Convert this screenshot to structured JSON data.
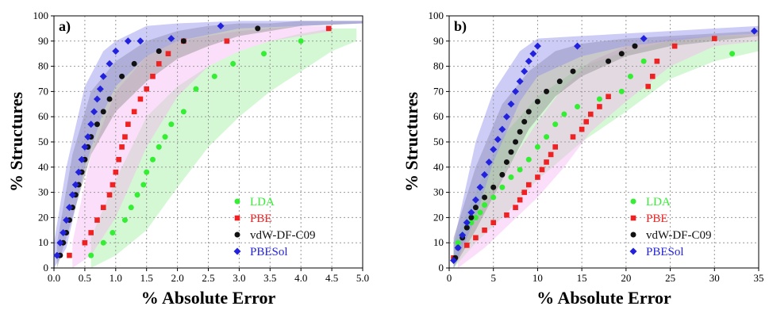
{
  "chart_data": [
    {
      "type": "scatter",
      "panel_label": "a)",
      "xlabel": "% Absolute Error",
      "ylabel": "% Structures",
      "xlim": [
        0,
        5.0
      ],
      "ylim": [
        0,
        100
      ],
      "xticks": [
        "0.0",
        "0.5",
        "1.0",
        "1.5",
        "2.0",
        "2.5",
        "3.0",
        "3.5",
        "4.0",
        "4.5",
        "5.0"
      ],
      "yticks": [
        "0",
        "10",
        "20",
        "30",
        "40",
        "50",
        "60",
        "70",
        "80",
        "90",
        "100"
      ],
      "grid": true,
      "legend_position": "bottom-right",
      "series": [
        {
          "name": "LDA",
          "color": "#33ee33",
          "marker": "circle",
          "x": [
            0.6,
            0.8,
            0.95,
            1.15,
            1.25,
            1.35,
            1.45,
            1.5,
            1.6,
            1.7,
            1.8,
            1.9,
            2.1,
            2.3,
            2.6,
            2.9,
            3.4,
            4.0
          ],
          "y": [
            5,
            10,
            14,
            19,
            24,
            29,
            33,
            38,
            43,
            48,
            52,
            57,
            62,
            71,
            76,
            81,
            85,
            90
          ],
          "band_x": [
            0.6,
            1.0,
            1.5,
            2.0,
            2.5,
            3.0,
            3.5,
            4.0,
            4.5,
            4.9
          ],
          "band_low": [
            0,
            5,
            15,
            32,
            48,
            60,
            70,
            78,
            86,
            90
          ],
          "band_high": [
            12,
            35,
            60,
            72,
            80,
            86,
            90,
            93,
            95,
            95
          ]
        },
        {
          "name": "PBE",
          "color": "#ee2222",
          "marker": "square",
          "x": [
            0.25,
            0.5,
            0.6,
            0.7,
            0.8,
            0.9,
            0.95,
            1.0,
            1.05,
            1.1,
            1.15,
            1.2,
            1.3,
            1.4,
            1.5,
            1.6,
            1.7,
            1.85,
            2.1,
            2.8,
            4.45
          ],
          "y": [
            5,
            10,
            14,
            19,
            24,
            29,
            33,
            38,
            43,
            48,
            52,
            57,
            62,
            67,
            71,
            76,
            81,
            85,
            90,
            90,
            95
          ],
          "band_x": [
            0.3,
            0.6,
            1.0,
            1.5,
            2.0,
            2.5,
            3.0,
            3.5,
            4.0,
            4.5
          ],
          "band_low": [
            0,
            5,
            20,
            48,
            68,
            80,
            86,
            90,
            92,
            94
          ],
          "band_high": [
            10,
            45,
            70,
            84,
            90,
            92,
            94,
            95,
            96,
            96
          ]
        },
        {
          "name": "vdW-DF-C09",
          "color": "#111111",
          "marker": "circle",
          "x": [
            0.1,
            0.15,
            0.2,
            0.25,
            0.3,
            0.35,
            0.4,
            0.45,
            0.5,
            0.55,
            0.6,
            0.7,
            0.8,
            0.9,
            1.1,
            1.3,
            1.7,
            2.1,
            3.3
          ],
          "y": [
            5,
            10,
            14,
            19,
            24,
            29,
            33,
            38,
            43,
            48,
            52,
            57,
            62,
            67,
            76,
            81,
            86,
            90,
            95
          ],
          "band_x": [
            0.05,
            0.3,
            0.6,
            1.0,
            1.5,
            2.0,
            2.5,
            3.0,
            3.5,
            4.0,
            5.0
          ],
          "band_low": [
            0,
            20,
            45,
            62,
            74,
            83,
            88,
            92,
            94,
            96,
            97
          ],
          "band_high": [
            10,
            45,
            70,
            82,
            90,
            94,
            96,
            97,
            97,
            98,
            98
          ]
        },
        {
          "name": "PBESol",
          "color": "#2222dd",
          "marker": "diamond",
          "x": [
            0.05,
            0.1,
            0.15,
            0.2,
            0.25,
            0.3,
            0.35,
            0.4,
            0.45,
            0.5,
            0.55,
            0.6,
            0.65,
            0.7,
            0.75,
            0.8,
            0.9,
            1.0,
            1.2,
            1.4,
            1.9,
            2.7
          ],
          "y": [
            5,
            10,
            14,
            19,
            24,
            29,
            33,
            38,
            43,
            48,
            52,
            57,
            62,
            67,
            71,
            76,
            81,
            86,
            90,
            90,
            91,
            96
          ],
          "band_x": [
            0.0,
            0.2,
            0.5,
            0.8,
            1.0,
            1.5,
            2.0,
            3.0,
            4.0,
            5.0
          ],
          "band_low": [
            0,
            8,
            40,
            62,
            72,
            84,
            90,
            95,
            96,
            97
          ],
          "band_high": [
            10,
            40,
            72,
            86,
            90,
            96,
            97,
            98,
            98,
            98
          ]
        }
      ]
    },
    {
      "type": "scatter",
      "panel_label": "b)",
      "xlabel": "% Absolute Error",
      "ylabel": "% Structures",
      "xlim": [
        0,
        35
      ],
      "ylim": [
        0,
        100
      ],
      "xticks": [
        "0",
        "5",
        "10",
        "15",
        "20",
        "25",
        "30",
        "35"
      ],
      "yticks": [
        "0",
        "10",
        "20",
        "30",
        "40",
        "50",
        "60",
        "70",
        "80",
        "90",
        "100"
      ],
      "grid": true,
      "legend_position": "bottom-right",
      "series": [
        {
          "name": "LDA",
          "color": "#33ee33",
          "marker": "circle",
          "x": [
            0.5,
            1.0,
            1.5,
            2.0,
            2.5,
            3.0,
            3.5,
            4.0,
            5.0,
            6.0,
            7.0,
            8.0,
            9.0,
            10.0,
            11.0,
            12.0,
            13.0,
            14.5,
            17.0,
            19.5,
            20.5,
            22.0,
            32.0
          ],
          "y": [
            4,
            10,
            13,
            16,
            18,
            20,
            22,
            25,
            28,
            32,
            36,
            39,
            43,
            48,
            52,
            57,
            61,
            64,
            67,
            70,
            76,
            82,
            85
          ],
          "band_x": [
            0.5,
            3,
            6,
            10,
            15,
            20,
            25,
            30,
            35
          ],
          "band_low": [
            0,
            10,
            20,
            35,
            50,
            62,
            75,
            82,
            86
          ],
          "band_high": [
            10,
            30,
            52,
            68,
            80,
            86,
            90,
            92,
            92
          ]
        },
        {
          "name": "PBE",
          "color": "#ee2222",
          "marker": "square",
          "x": [
            0.5,
            2.0,
            3.0,
            4.0,
            5.0,
            6.5,
            7.5,
            8.0,
            8.5,
            9.0,
            10.0,
            10.5,
            11.0,
            11.5,
            12.0,
            14.0,
            15.0,
            15.5,
            16.0,
            17.0,
            18.0,
            22.5,
            23.0,
            23.5,
            25.5,
            30.0
          ],
          "y": [
            4,
            9,
            12,
            15,
            18,
            21,
            24,
            27,
            30,
            33,
            36,
            39,
            42,
            45,
            48,
            52,
            55,
            58,
            61,
            64,
            68,
            72,
            76,
            82,
            88,
            91
          ],
          "band_x": [
            1,
            4,
            7,
            10,
            13,
            16,
            20,
            25,
            30,
            35
          ],
          "band_low": [
            0,
            8,
            18,
            28,
            40,
            54,
            66,
            80,
            88,
            90
          ],
          "band_high": [
            10,
            25,
            42,
            58,
            72,
            82,
            88,
            91,
            92,
            93
          ]
        },
        {
          "name": "vdW-DF-C09",
          "color": "#111111",
          "marker": "circle",
          "x": [
            0.7,
            1.0,
            1.5,
            2.0,
            2.5,
            3.0,
            4.0,
            5.0,
            6.0,
            6.5,
            7.0,
            7.5,
            8.0,
            8.5,
            9.0,
            10.0,
            11.0,
            12.5,
            14.0,
            18.0,
            19.5,
            21.0
          ],
          "y": [
            4,
            8,
            12,
            16,
            20,
            24,
            28,
            32,
            37,
            42,
            46,
            50,
            54,
            58,
            62,
            66,
            70,
            74,
            78,
            82,
            85,
            88
          ],
          "band_x": [
            0.5,
            3,
            6,
            9,
            12,
            15,
            20,
            25,
            30,
            35
          ],
          "band_low": [
            0,
            15,
            35,
            55,
            68,
            76,
            84,
            88,
            90,
            92
          ],
          "band_high": [
            12,
            40,
            65,
            78,
            86,
            89,
            91,
            92,
            93,
            94
          ]
        },
        {
          "name": "PBESol",
          "color": "#2222dd",
          "marker": "diamond",
          "x": [
            0.5,
            1.0,
            1.5,
            2.0,
            2.5,
            3.0,
            3.5,
            4.0,
            4.5,
            5.0,
            5.5,
            6.0,
            6.5,
            7.0,
            7.5,
            8.0,
            8.5,
            9.0,
            9.5,
            10.0,
            14.5,
            22.0,
            34.5
          ],
          "y": [
            3,
            8,
            13,
            18,
            22,
            27,
            32,
            37,
            42,
            47,
            51,
            55,
            60,
            65,
            70,
            74,
            78,
            82,
            85,
            88,
            88,
            91,
            94
          ],
          "band_x": [
            0.5,
            3,
            5,
            8,
            10,
            15,
            20,
            25,
            30,
            35
          ],
          "band_low": [
            0,
            20,
            42,
            66,
            76,
            84,
            88,
            90,
            92,
            93
          ],
          "band_high": [
            10,
            50,
            70,
            86,
            91,
            92,
            93,
            94,
            95,
            96
          ]
        }
      ]
    }
  ]
}
